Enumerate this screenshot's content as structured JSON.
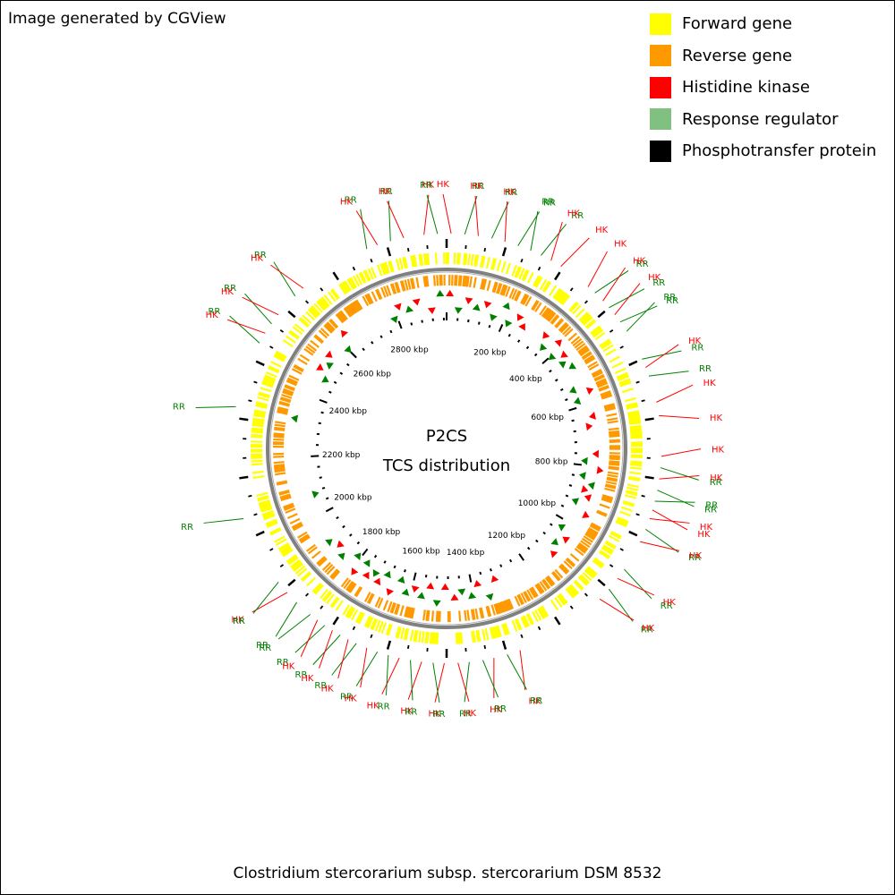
{
  "credit": "Image generated by CGView",
  "legend": {
    "items": [
      {
        "label": "Forward gene",
        "color": "#ffff00"
      },
      {
        "label": "Reverse gene",
        "color": "#ff9900"
      },
      {
        "label": "Histidine kinase",
        "color": "#ff0000"
      },
      {
        "label": "Response regulator",
        "color": "#80c080"
      },
      {
        "label": "Phosphotransfer protein",
        "color": "#000000"
      }
    ]
  },
  "map": {
    "title_line1": "P2CS",
    "title_line2": "TCS distribution",
    "genome_length_kbp": 2970,
    "ticks": [
      "200 kbp",
      "400 kbp",
      "600 kbp",
      "800 kbp",
      "1000 kbp",
      "1200 kbp",
      "1400 kbp",
      "1600 kbp",
      "1800 kbp",
      "2000 kbp",
      "2200 kbp",
      "2400 kbp",
      "2600 kbp",
      "2800 kbp"
    ],
    "colors": {
      "forward": "#ffff00",
      "reverse": "#ff9900",
      "hk": "#ff0000",
      "rr": "#008000",
      "rr_legend": "#80c080",
      "backbone": "#808080",
      "label_hk": "#ff0000",
      "label_rr": "#008000"
    },
    "feature_labels": [
      {
        "text": "HK",
        "type": "hk",
        "kbp": 10
      },
      {
        "text": "RR",
        "type": "rr",
        "kbp": 40
      },
      {
        "text": "HK",
        "type": "hk",
        "kbp": 70
      },
      {
        "text": "RR",
        "type": "rr",
        "kbp": 100
      },
      {
        "text": "HK",
        "type": "hk",
        "kbp": 130
      },
      {
        "text": "RR",
        "type": "rr",
        "kbp": 160
      },
      {
        "text": "RR",
        "type": "rr",
        "kbp": 190
      },
      {
        "text": "RR",
        "type": "rr",
        "kbp": 215
      },
      {
        "text": "HK",
        "type": "hk",
        "kbp": 240
      },
      {
        "text": "HK",
        "type": "hk",
        "kbp": 265
      },
      {
        "text": "HK",
        "type": "hk",
        "kbp": 340
      },
      {
        "text": "RR",
        "type": "rr",
        "kbp": 360
      },
      {
        "text": "HK",
        "type": "hk",
        "kbp": 385
      },
      {
        "text": "RR",
        "type": "rr",
        "kbp": 405
      },
      {
        "text": "HK",
        "type": "hk",
        "kbp": 425
      },
      {
        "text": "RR",
        "type": "rr",
        "kbp": 445
      },
      {
        "text": "RR",
        "type": "rr",
        "kbp": 470
      },
      {
        "text": "RR",
        "type": "rr",
        "kbp": 540
      },
      {
        "text": "HK",
        "type": "hk",
        "kbp": 560
      },
      {
        "text": "RR",
        "type": "rr",
        "kbp": 580
      },
      {
        "text": "HK",
        "type": "hk",
        "kbp": 640
      },
      {
        "text": "HK",
        "type": "hk",
        "kbp": 670
      },
      {
        "text": "HK",
        "type": "hk",
        "kbp": 760
      },
      {
        "text": "RR",
        "type": "rr",
        "kbp": 785
      },
      {
        "text": "HK",
        "type": "hk",
        "kbp": 810
      },
      {
        "text": "RR",
        "type": "rr",
        "kbp": 835
      },
      {
        "text": "RR",
        "type": "rr",
        "kbp": 860
      },
      {
        "text": "HK",
        "type": "hk",
        "kbp": 880
      },
      {
        "text": "HK",
        "type": "hk",
        "kbp": 900
      },
      {
        "text": "RR",
        "type": "rr",
        "kbp": 925
      },
      {
        "text": "HK",
        "type": "hk",
        "kbp": 955
      },
      {
        "text": "RR",
        "type": "rr",
        "kbp": 1025
      },
      {
        "text": "HK",
        "type": "hk",
        "kbp": 1050
      },
      {
        "text": "RR",
        "type": "rr",
        "kbp": 1080
      },
      {
        "text": "HK",
        "type": "hk",
        "kbp": 1110
      },
      {
        "text": "HK",
        "type": "hk",
        "kbp": 1320
      },
      {
        "text": "RR",
        "type": "rr",
        "kbp": 1350
      },
      {
        "text": "HK",
        "type": "hk",
        "kbp": 1380
      },
      {
        "text": "RR",
        "type": "rr",
        "kbp": 1405
      },
      {
        "text": "RR",
        "type": "rr",
        "kbp": 1435
      },
      {
        "text": "HK",
        "type": "hk",
        "kbp": 1460
      },
      {
        "text": "HK",
        "type": "hk",
        "kbp": 1490
      },
      {
        "text": "RR",
        "type": "rr",
        "kbp": 1515
      },
      {
        "text": "HK",
        "type": "hk",
        "kbp": 1540
      },
      {
        "text": "RR",
        "type": "rr",
        "kbp": 1565
      },
      {
        "text": "HK",
        "type": "hk",
        "kbp": 1590
      },
      {
        "text": "RR",
        "type": "rr",
        "kbp": 1615
      },
      {
        "text": "RR",
        "type": "rr",
        "kbp": 1640
      },
      {
        "text": "HK",
        "type": "hk",
        "kbp": 1665
      },
      {
        "text": "RR",
        "type": "rr",
        "kbp": 1690
      },
      {
        "text": "HK",
        "type": "hk",
        "kbp": 1710
      },
      {
        "text": "RR",
        "type": "rr",
        "kbp": 1730
      },
      {
        "text": "HK",
        "type": "hk",
        "kbp": 1750
      },
      {
        "text": "RR",
        "type": "rr",
        "kbp": 1770
      },
      {
        "text": "HK",
        "type": "hk",
        "kbp": 1790
      },
      {
        "text": "RR",
        "type": "rr",
        "kbp": 1810
      },
      {
        "text": "RR",
        "type": "rr",
        "kbp": 1850
      },
      {
        "text": "HK",
        "type": "hk",
        "kbp": 1880
      },
      {
        "text": "RR",
        "type": "rr",
        "kbp": 1910
      },
      {
        "text": "RR",
        "type": "rr",
        "kbp": 2070
      },
      {
        "text": "RR",
        "type": "rr",
        "kbp": 2320
      },
      {
        "text": "RR",
        "type": "rr",
        "kbp": 2470
      },
      {
        "text": "HK",
        "type": "hk",
        "kbp": 2495
      },
      {
        "text": "RR",
        "type": "rr",
        "kbp": 2520
      },
      {
        "text": "HK",
        "type": "hk",
        "kbp": 2545
      },
      {
        "text": "RR",
        "type": "rr",
        "kbp": 2600
      },
      {
        "text": "HK",
        "type": "hk",
        "kbp": 2625
      },
      {
        "text": "RR",
        "type": "rr",
        "kbp": 2790
      },
      {
        "text": "HK",
        "type": "hk",
        "kbp": 2815
      },
      {
        "text": "RR",
        "type": "rr",
        "kbp": 2845
      },
      {
        "text": "HK",
        "type": "hk",
        "kbp": 2875
      },
      {
        "text": "HK",
        "type": "hk",
        "kbp": 2920
      },
      {
        "text": "RR",
        "type": "rr",
        "kbp": 2950
      }
    ]
  },
  "footer": "Clostridium stercorarium subsp. stercorarium DSM 8532"
}
